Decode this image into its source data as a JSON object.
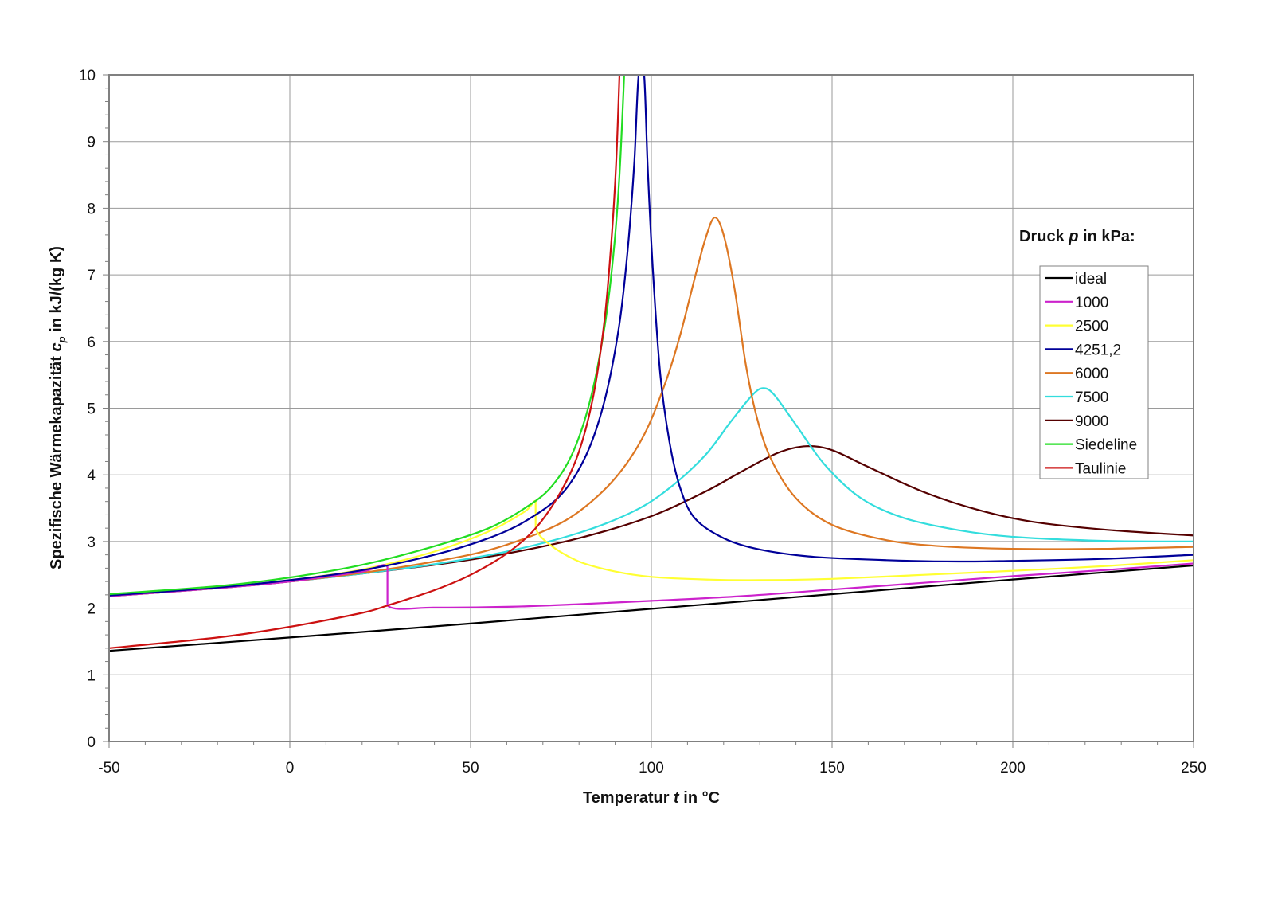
{
  "chart_data": {
    "type": "line",
    "title": "",
    "xlabel": "Temperatur t in °C",
    "xlabel_parts": [
      "Temperatur ",
      "t",
      " in °C"
    ],
    "ylabel": "Spezifische Wärmekapazität c_p in kJ/(kg K)",
    "ylabel_parts": [
      "Spezifische Wärmekapazität ",
      "c",
      "p",
      " in kJ/(kg K)"
    ],
    "xlim": [
      -50,
      250
    ],
    "ylim": [
      0,
      10
    ],
    "x_ticks": [
      -50,
      0,
      50,
      100,
      150,
      200,
      250
    ],
    "y_ticks": [
      0,
      1,
      2,
      3,
      4,
      5,
      6,
      7,
      8,
      9,
      10
    ],
    "x_minor_step": 10,
    "y_minor_step": 0.2,
    "grid": true,
    "legend_title_parts": [
      "Druck ",
      "p",
      " in kPa:"
    ],
    "legend_position": "right",
    "series": [
      {
        "name": "ideal",
        "color": "#000000",
        "points": [
          [
            -50,
            1.36
          ],
          [
            0,
            1.56
          ],
          [
            50,
            1.77
          ],
          [
            100,
            1.99
          ],
          [
            150,
            2.21
          ],
          [
            200,
            2.43
          ],
          [
            250,
            2.64
          ]
        ]
      },
      {
        "name": "1000",
        "color": "#cc22cc",
        "points": [
          [
            -50,
            2.18
          ],
          [
            -20,
            2.3
          ],
          [
            0,
            2.4
          ],
          [
            20,
            2.55
          ],
          [
            27,
            2.62
          ],
          [
            27,
            2.04
          ],
          [
            40,
            2.01
          ],
          [
            60,
            2.02
          ],
          [
            80,
            2.06
          ],
          [
            100,
            2.11
          ],
          [
            125,
            2.18
          ],
          [
            150,
            2.28
          ],
          [
            175,
            2.38
          ],
          [
            200,
            2.48
          ],
          [
            225,
            2.57
          ],
          [
            250,
            2.67
          ]
        ]
      },
      {
        "name": "2500",
        "color": "#ffff33",
        "points": [
          [
            -50,
            2.19
          ],
          [
            -20,
            2.31
          ],
          [
            0,
            2.42
          ],
          [
            20,
            2.58
          ],
          [
            40,
            2.85
          ],
          [
            55,
            3.15
          ],
          [
            65,
            3.45
          ],
          [
            68,
            3.6
          ],
          [
            68,
            3.2
          ],
          [
            72,
            2.95
          ],
          [
            80,
            2.7
          ],
          [
            90,
            2.55
          ],
          [
            100,
            2.47
          ],
          [
            115,
            2.43
          ],
          [
            130,
            2.42
          ],
          [
            150,
            2.44
          ],
          [
            175,
            2.5
          ],
          [
            200,
            2.56
          ],
          [
            225,
            2.63
          ],
          [
            250,
            2.72
          ]
        ]
      },
      {
        "name": "4251,2",
        "color": "#000099",
        "points": [
          [
            -50,
            2.19
          ],
          [
            -20,
            2.31
          ],
          [
            0,
            2.42
          ],
          [
            20,
            2.57
          ],
          [
            40,
            2.8
          ],
          [
            55,
            3.05
          ],
          [
            65,
            3.3
          ],
          [
            75,
            3.7
          ],
          [
            82,
            4.3
          ],
          [
            87,
            5.1
          ],
          [
            91,
            6.2
          ],
          [
            93.5,
            7.4
          ],
          [
            95.3,
            8.7
          ],
          [
            96.5,
            10
          ],
          [
            98,
            10
          ],
          [
            99,
            8.6
          ],
          [
            100.5,
            7.0
          ],
          [
            102.5,
            5.5
          ],
          [
            105,
            4.5
          ],
          [
            108,
            3.8
          ],
          [
            112,
            3.35
          ],
          [
            120,
            3.05
          ],
          [
            130,
            2.88
          ],
          [
            145,
            2.77
          ],
          [
            165,
            2.72
          ],
          [
            185,
            2.7
          ],
          [
            200,
            2.71
          ],
          [
            225,
            2.74
          ],
          [
            250,
            2.8
          ]
        ]
      },
      {
        "name": "6000",
        "color": "#dd7722",
        "points": [
          [
            -50,
            2.18
          ],
          [
            -20,
            2.3
          ],
          [
            0,
            2.4
          ],
          [
            20,
            2.53
          ],
          [
            40,
            2.7
          ],
          [
            55,
            2.87
          ],
          [
            70,
            3.15
          ],
          [
            80,
            3.45
          ],
          [
            90,
            3.95
          ],
          [
            98,
            4.6
          ],
          [
            104,
            5.4
          ],
          [
            108,
            6.1
          ],
          [
            112,
            6.95
          ],
          [
            115,
            7.55
          ],
          [
            117.5,
            7.86
          ],
          [
            120,
            7.6
          ],
          [
            123,
            6.8
          ],
          [
            126,
            5.7
          ],
          [
            129,
            4.9
          ],
          [
            133,
            4.25
          ],
          [
            140,
            3.65
          ],
          [
            150,
            3.25
          ],
          [
            165,
            3.02
          ],
          [
            180,
            2.93
          ],
          [
            200,
            2.89
          ],
          [
            225,
            2.89
          ],
          [
            250,
            2.92
          ]
        ]
      },
      {
        "name": "7500",
        "color": "#33dddd",
        "points": [
          [
            -50,
            2.18
          ],
          [
            -20,
            2.3
          ],
          [
            0,
            2.4
          ],
          [
            20,
            2.52
          ],
          [
            40,
            2.66
          ],
          [
            60,
            2.85
          ],
          [
            80,
            3.13
          ],
          [
            95,
            3.45
          ],
          [
            105,
            3.8
          ],
          [
            115,
            4.3
          ],
          [
            122,
            4.8
          ],
          [
            128,
            5.2
          ],
          [
            131,
            5.3
          ],
          [
            134,
            5.2
          ],
          [
            140,
            4.75
          ],
          [
            148,
            4.15
          ],
          [
            158,
            3.65
          ],
          [
            170,
            3.35
          ],
          [
            185,
            3.17
          ],
          [
            200,
            3.07
          ],
          [
            225,
            3.01
          ],
          [
            250,
            3.0
          ]
        ]
      },
      {
        "name": "9000",
        "color": "#550000",
        "points": [
          [
            -50,
            2.18
          ],
          [
            -20,
            2.3
          ],
          [
            0,
            2.4
          ],
          [
            20,
            2.52
          ],
          [
            40,
            2.65
          ],
          [
            60,
            2.82
          ],
          [
            80,
            3.05
          ],
          [
            100,
            3.38
          ],
          [
            115,
            3.75
          ],
          [
            125,
            4.05
          ],
          [
            135,
            4.33
          ],
          [
            143,
            4.43
          ],
          [
            150,
            4.37
          ],
          [
            160,
            4.12
          ],
          [
            175,
            3.75
          ],
          [
            190,
            3.48
          ],
          [
            205,
            3.3
          ],
          [
            225,
            3.18
          ],
          [
            250,
            3.09
          ]
        ]
      },
      {
        "name": "Siedeline",
        "color": "#22dd22",
        "points": [
          [
            -50,
            2.21
          ],
          [
            -20,
            2.33
          ],
          [
            0,
            2.46
          ],
          [
            20,
            2.65
          ],
          [
            40,
            2.93
          ],
          [
            55,
            3.2
          ],
          [
            65,
            3.5
          ],
          [
            72,
            3.8
          ],
          [
            78,
            4.3
          ],
          [
            83,
            5.1
          ],
          [
            87,
            6.2
          ],
          [
            89.5,
            7.3
          ],
          [
            91.2,
            8.5
          ],
          [
            92.5,
            10
          ]
        ]
      },
      {
        "name": "Taulinie",
        "color": "#cc1111",
        "points": [
          [
            -50,
            1.4
          ],
          [
            -20,
            1.56
          ],
          [
            0,
            1.72
          ],
          [
            20,
            1.93
          ],
          [
            27,
            2.04
          ],
          [
            40,
            2.27
          ],
          [
            50,
            2.5
          ],
          [
            60,
            2.82
          ],
          [
            68,
            3.2
          ],
          [
            75,
            3.75
          ],
          [
            80,
            4.35
          ],
          [
            84,
            5.2
          ],
          [
            87,
            6.3
          ],
          [
            88.8,
            7.4
          ],
          [
            90.2,
            8.6
          ],
          [
            91.2,
            10
          ]
        ]
      }
    ]
  }
}
